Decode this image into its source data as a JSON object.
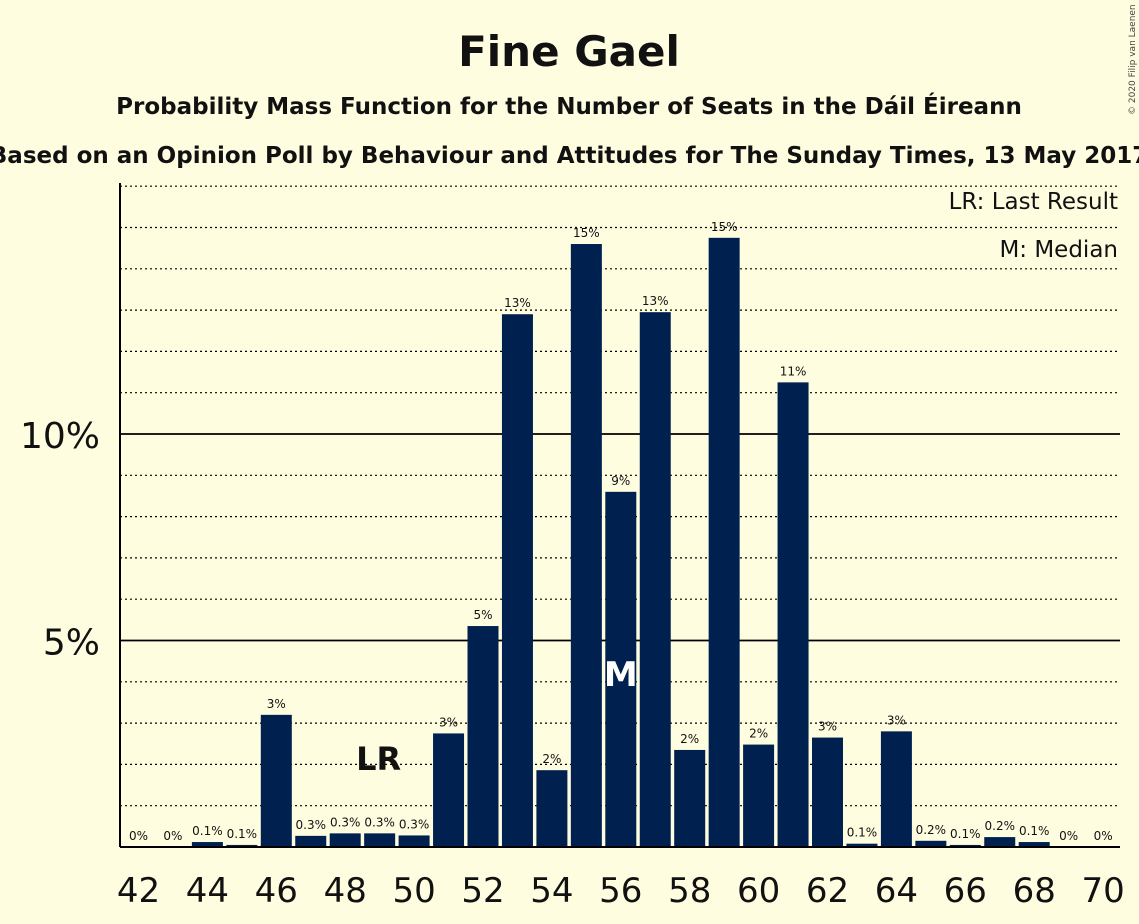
{
  "chart_data": {
    "type": "bar",
    "title": "Fine Gael",
    "subtitle": "Probability Mass Function for the Number of Seats in the Dáil Éireann",
    "subtitle2": "Based on an Opinion Poll by Behaviour and Attitudes for The Sunday Times, 13 May 2017",
    "copyright": "© 2020 Filip van Laenen",
    "legend": {
      "lr": "LR: Last Result",
      "median": "M: Median"
    },
    "lr_label": "LR",
    "median_label": "M",
    "lr_seat": 49,
    "median_seat": 56,
    "bar_color": "#002050",
    "ylim": [
      0,
      16
    ],
    "y_ticks": [
      {
        "value": 5,
        "label": "5%"
      },
      {
        "value": 10,
        "label": "10%"
      }
    ],
    "x_tick_labels": [
      "42",
      "44",
      "46",
      "48",
      "50",
      "52",
      "54",
      "56",
      "58",
      "60",
      "62",
      "64",
      "66",
      "68",
      "70"
    ],
    "seats": [
      42,
      43,
      44,
      45,
      46,
      47,
      48,
      49,
      50,
      51,
      52,
      53,
      54,
      55,
      56,
      57,
      58,
      59,
      60,
      61,
      62,
      63,
      64,
      65,
      66,
      67,
      68,
      69,
      70
    ],
    "values": [
      0,
      0,
      0.12,
      0.05,
      3.2,
      0.27,
      0.33,
      0.33,
      0.28,
      2.75,
      5.35,
      12.9,
      1.86,
      14.6,
      8.6,
      12.95,
      2.35,
      14.75,
      2.48,
      11.25,
      2.65,
      0.08,
      2.8,
      0.15,
      0.05,
      0.24,
      0.12,
      0,
      0
    ],
    "labels": [
      "0%",
      "0%",
      "0.1%",
      "0.1%",
      "3%",
      "0.3%",
      "0.3%",
      "0.3%",
      "0.3%",
      "3%",
      "5%",
      "13%",
      "2%",
      "15%",
      "9%",
      "13%",
      "2%",
      "15%",
      "2%",
      "11%",
      "3%",
      "0.1%",
      "3%",
      "0.2%",
      "0.1%",
      "0.2%",
      "0.1%",
      "0%",
      "0%"
    ]
  }
}
